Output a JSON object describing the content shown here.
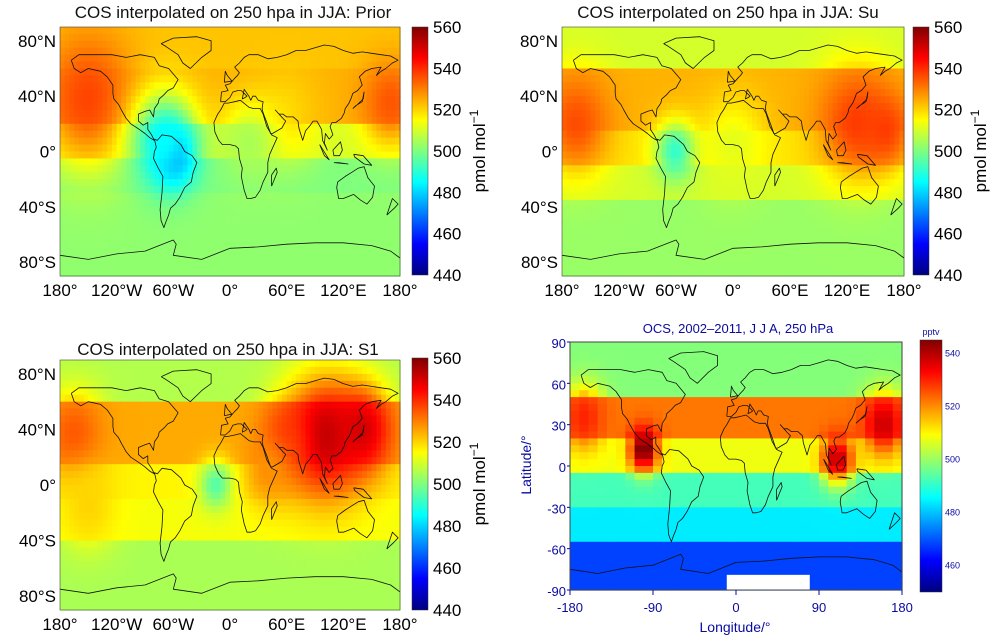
{
  "colors": {
    "scale": [
      "#00007f",
      "#0000ff",
      "#007fff",
      "#00ffff",
      "#7fff7f",
      "#ffff00",
      "#ff7f00",
      "#ff0000",
      "#7f0000"
    ],
    "satellite_axis_text": "#0a0aa0",
    "axis_text": "#000000"
  },
  "chart_data": [
    {
      "type": "heatmap",
      "title": "COS interpolated on 250 hpa in JJA: Prior",
      "x_ticks": [
        "180°",
        "120°W",
        "60°W",
        "0°",
        "60°E",
        "120°E",
        "180°"
      ],
      "y_ticks": [
        "80°N",
        "40°N",
        "0°",
        "40°S",
        "80°S"
      ],
      "colorbar": {
        "label": "pmol mol",
        "superscript": "−1",
        "ticks": [
          "560",
          "540",
          "520",
          "500",
          "480",
          "460",
          "440"
        ],
        "range": [
          440,
          560
        ]
      },
      "grid_resolution": "5° x 5°",
      "fields": {
        "background": 505,
        "bands": [
          {
            "lat": [
              60,
              90
            ],
            "value": 522
          },
          {
            "lat": [
              20,
              60
            ],
            "value": 524
          },
          {
            "lat": [
              -5,
              20
            ],
            "value": 510
          },
          {
            "lat": [
              -30,
              -5
            ],
            "value": 500
          },
          {
            "lat": [
              -90,
              -30
            ],
            "value": 502
          }
        ],
        "blobs": [
          {
            "lon": -150,
            "lat": 38,
            "radius": 55,
            "value": 537
          },
          {
            "lon": 170,
            "lat": 35,
            "radius": 35,
            "value": 535
          },
          {
            "lon": -60,
            "lat": -2,
            "radius": 25,
            "value": 462
          },
          {
            "lon": -70,
            "lat": 8,
            "radius": 40,
            "value": 485
          },
          {
            "lon": 60,
            "lat": 30,
            "radius": 40,
            "value": 520
          },
          {
            "lon": 20,
            "lat": 5,
            "radius": 35,
            "value": 505
          }
        ]
      }
    },
    {
      "type": "heatmap",
      "title": "COS interpolated on 250 hpa in JJA: Su",
      "x_ticks": [
        "180°",
        "120°W",
        "60°W",
        "0°",
        "60°E",
        "120°E",
        "180°"
      ],
      "y_ticks": [
        "80°N",
        "40°N",
        "0°",
        "40°S",
        "80°S"
      ],
      "colorbar": {
        "label": "pmol mol",
        "superscript": "−1",
        "ticks": [
          "560",
          "540",
          "520",
          "500",
          "480",
          "460",
          "440"
        ],
        "range": [
          440,
          560
        ]
      },
      "grid_resolution": "5° x 5°",
      "fields": {
        "background": 505,
        "bands": [
          {
            "lat": [
              60,
              90
            ],
            "value": 510
          },
          {
            "lat": [
              15,
              60
            ],
            "value": 524
          },
          {
            "lat": [
              -10,
              15
            ],
            "value": 518
          },
          {
            "lat": [
              -35,
              -10
            ],
            "value": 510
          },
          {
            "lat": [
              -90,
              -35
            ],
            "value": 503
          }
        ],
        "blobs": [
          {
            "lon": -165,
            "lat": 20,
            "radius": 40,
            "value": 536
          },
          {
            "lon": 130,
            "lat": 20,
            "radius": 45,
            "value": 538
          },
          {
            "lon": 160,
            "lat": 15,
            "radius": 30,
            "value": 538
          },
          {
            "lon": -60,
            "lat": 0,
            "radius": 25,
            "value": 490
          },
          {
            "lon": 0,
            "lat": 5,
            "radius": 40,
            "value": 512
          }
        ]
      }
    },
    {
      "type": "heatmap",
      "title": "COS interpolated on 250 hpa in JJA: S1",
      "x_ticks": [
        "180°",
        "120°W",
        "60°W",
        "0°",
        "60°E",
        "120°E",
        "180°"
      ],
      "y_ticks": [
        "80°N",
        "40°N",
        "0°",
        "40°S",
        "80°S"
      ],
      "colorbar": {
        "label": "pmol mol",
        "superscript": "−1",
        "ticks": [
          "560",
          "540",
          "520",
          "500",
          "480",
          "460",
          "440"
        ],
        "range": [
          440,
          560
        ]
      },
      "grid_resolution": "5° x 5°",
      "fields": {
        "background": 505,
        "bands": [
          {
            "lat": [
              60,
              90
            ],
            "value": 506
          },
          {
            "lat": [
              15,
              60
            ],
            "value": 525
          },
          {
            "lat": [
              -10,
              15
            ],
            "value": 516
          },
          {
            "lat": [
              -40,
              -10
            ],
            "value": 514
          },
          {
            "lat": [
              -90,
              -40
            ],
            "value": 505
          }
        ],
        "blobs": [
          {
            "lon": 100,
            "lat": 35,
            "radius": 50,
            "value": 553
          },
          {
            "lon": 140,
            "lat": 40,
            "radius": 35,
            "value": 550
          },
          {
            "lon": 60,
            "lat": 30,
            "radius": 30,
            "value": 540
          },
          {
            "lon": -165,
            "lat": 35,
            "radius": 35,
            "value": 535
          },
          {
            "lon": 40,
            "lat": 10,
            "radius": 30,
            "value": 528
          },
          {
            "lon": -15,
            "lat": 0,
            "radius": 20,
            "value": 495
          },
          {
            "lon": -150,
            "lat": -15,
            "radius": 35,
            "value": 520
          }
        ]
      }
    },
    {
      "type": "heatmap",
      "title": "OCS, 2002–2011, J J A, 250 hPa",
      "xlabel": "Longitude/°",
      "ylabel": "Latitude/°",
      "x_ticks": [
        "-180",
        "-90",
        "0",
        "90",
        "180"
      ],
      "y_ticks": [
        "90",
        "60",
        "30",
        "0",
        "-30",
        "-60",
        "-90"
      ],
      "colorbar": {
        "label": "pptv",
        "ticks": [
          "540",
          "520",
          "500",
          "480",
          "460"
        ],
        "range": [
          450,
          545
        ]
      },
      "grid_resolution": "10° x 5°",
      "fields": {
        "background": 495,
        "bands": [
          {
            "lat": [
              50,
              90
            ],
            "value": 498
          },
          {
            "lat": [
              20,
              50
            ],
            "value": 522
          },
          {
            "lat": [
              -5,
              20
            ],
            "value": 508
          },
          {
            "lat": [
              -30,
              -5
            ],
            "value": 492
          },
          {
            "lat": [
              -55,
              -30
            ],
            "value": 484
          },
          {
            "lat": [
              -90,
              -55
            ],
            "value": 468
          }
        ],
        "blobs": [
          {
            "lon": -100,
            "lat": 12,
            "radius": 18,
            "value": 548
          },
          {
            "lon": 110,
            "lat": 5,
            "radius": 20,
            "value": 540
          },
          {
            "lon": 160,
            "lat": 30,
            "radius": 25,
            "value": 538
          },
          {
            "lon": -165,
            "lat": 35,
            "radius": 25,
            "value": 530
          }
        ]
      }
    }
  ]
}
